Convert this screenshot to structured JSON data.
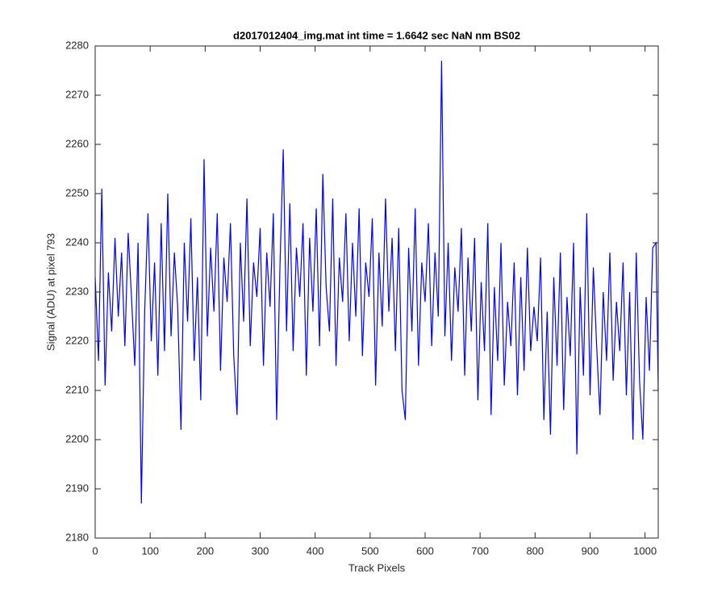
{
  "chart_data": {
    "type": "line",
    "title": "d2017012404_img.mat int time = 1.6642 sec  NaN nm BS02",
    "x_label": "Track Pixels",
    "y_label": "Signal (ADU) at pixel 793",
    "xlim": [
      0,
      1024
    ],
    "ylim": [
      2180,
      2280
    ],
    "xticks": [
      0,
      100,
      200,
      300,
      400,
      500,
      600,
      700,
      800,
      900,
      1000
    ],
    "yticks": [
      2180,
      2190,
      2200,
      2210,
      2220,
      2230,
      2240,
      2250,
      2260,
      2270,
      2280
    ],
    "series": [
      {
        "color": "#0000ff",
        "x": [
          0,
          6,
          12,
          18,
          24,
          30,
          36,
          42,
          48,
          54,
          60,
          66,
          72,
          78,
          84,
          90,
          96,
          102,
          108,
          114,
          120,
          126,
          132,
          138,
          144,
          150,
          156,
          162,
          168,
          174,
          180,
          186,
          192,
          198,
          204,
          210,
          216,
          222,
          228,
          234,
          240,
          246,
          252,
          258,
          264,
          270,
          276,
          282,
          288,
          294,
          300,
          306,
          312,
          318,
          324,
          330,
          336,
          342,
          348,
          354,
          360,
          366,
          372,
          378,
          384,
          390,
          396,
          402,
          408,
          414,
          420,
          426,
          432,
          438,
          444,
          450,
          456,
          462,
          468,
          474,
          480,
          486,
          492,
          498,
          504,
          510,
          516,
          522,
          528,
          534,
          540,
          546,
          552,
          558,
          564,
          570,
          576,
          582,
          588,
          594,
          600,
          606,
          612,
          618,
          624,
          630,
          636,
          642,
          648,
          654,
          660,
          666,
          672,
          678,
          684,
          690,
          696,
          702,
          708,
          714,
          720,
          726,
          732,
          738,
          744,
          750,
          756,
          762,
          768,
          774,
          780,
          786,
          792,
          798,
          804,
          810,
          816,
          822,
          828,
          834,
          840,
          846,
          852,
          858,
          864,
          870,
          876,
          882,
          888,
          894,
          900,
          906,
          912,
          918,
          924,
          930,
          936,
          942,
          948,
          954,
          960,
          966,
          972,
          978,
          984,
          990,
          996,
          1002,
          1008,
          1014,
          1020,
          1024
        ],
        "values": [
          2233,
          2216,
          2251,
          2211,
          2234,
          2222,
          2241,
          2225,
          2238,
          2219,
          2242,
          2229,
          2215,
          2240,
          2187,
          2226,
          2246,
          2220,
          2236,
          2213,
          2244,
          2218,
          2250,
          2221,
          2238,
          2227,
          2202,
          2240,
          2224,
          2245,
          2216,
          2233,
          2208,
          2257,
          2221,
          2239,
          2226,
          2246,
          2214,
          2237,
          2228,
          2244,
          2217,
          2205,
          2240,
          2224,
          2249,
          2219,
          2236,
          2229,
          2243,
          2215,
          2238,
          2227,
          2246,
          2204,
          2235,
          2259,
          2222,
          2248,
          2218,
          2239,
          2229,
          2244,
          2213,
          2241,
          2226,
          2247,
          2219,
          2254,
          2231,
          2222,
          2249,
          2215,
          2237,
          2228,
          2246,
          2220,
          2240,
          2225,
          2247,
          2217,
          2236,
          2229,
          2245,
          2211,
          2238,
          2223,
          2249,
          2226,
          2241,
          2218,
          2243,
          2210,
          2204,
          2239,
          2222,
          2247,
          2215,
          2236,
          2228,
          2244,
          2219,
          2238,
          2225,
          2277,
          2221,
          2240,
          2216,
          2235,
          2226,
          2243,
          2213,
          2237,
          2222,
          2241,
          2208,
          2232,
          2218,
          2244,
          2205,
          2231,
          2216,
          2240,
          2211,
          2228,
          2219,
          2236,
          2209,
          2233,
          2214,
          2239,
          2218,
          2227,
          2220,
          2237,
          2204,
          2226,
          2201,
          2233,
          2215,
          2238,
          2206,
          2229,
          2217,
          2240,
          2197,
          2231,
          2213,
          2246,
          2209,
          2235,
          2219,
          2205,
          2230,
          2216,
          2238,
          2212,
          2228,
          2218,
          2236,
          2209,
          2230,
          2200,
          2238,
          2212,
          2200,
          2229,
          2214,
          2239,
          2240,
          2210
        ]
      }
    ]
  }
}
